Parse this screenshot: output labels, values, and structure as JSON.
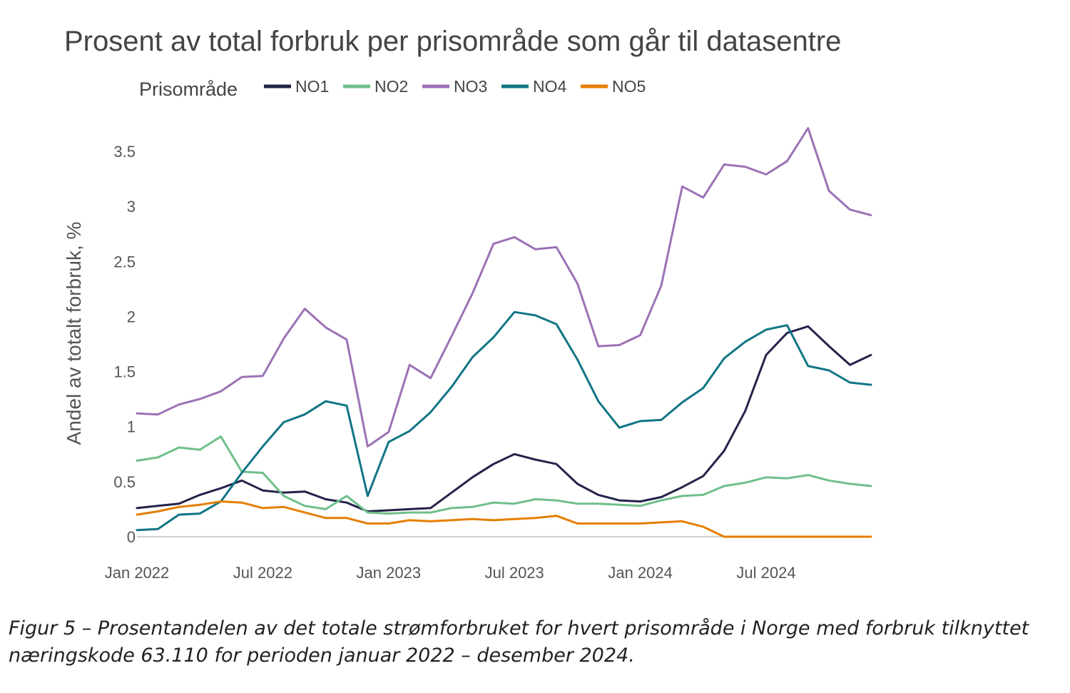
{
  "chart_data": {
    "type": "line",
    "title": "Prosent av total forbruk per prisområde som går til datasentre",
    "legend_title": "Prisområde",
    "legend_position": "top",
    "xlabel": "",
    "ylabel": "Andel av totalt forbruk, %",
    "x_ticks": [
      "Jan 2022",
      "Jul 2022",
      "Jan 2023",
      "Jul 2023",
      "Jan 2024",
      "Jul 2024"
    ],
    "y_ticks": [
      "0",
      "0.5",
      "1",
      "1.5",
      "2",
      "2.5",
      "3",
      "3.5"
    ],
    "ylim": [
      0,
      3.75
    ],
    "grid": false,
    "x": [
      "2022-01",
      "2022-02",
      "2022-03",
      "2022-04",
      "2022-05",
      "2022-06",
      "2022-07",
      "2022-08",
      "2022-09",
      "2022-10",
      "2022-11",
      "2022-12",
      "2023-01",
      "2023-02",
      "2023-03",
      "2023-04",
      "2023-05",
      "2023-06",
      "2023-07",
      "2023-08",
      "2023-09",
      "2023-10",
      "2023-11",
      "2023-12",
      "2024-01",
      "2024-02",
      "2024-03",
      "2024-04",
      "2024-05",
      "2024-06",
      "2024-07",
      "2024-08",
      "2024-09",
      "2024-10",
      "2024-11",
      "2024-12"
    ],
    "series": [
      {
        "name": "NO1",
        "color": "#23234a",
        "values": [
          0.26,
          0.28,
          0.3,
          0.38,
          0.44,
          0.51,
          0.42,
          0.4,
          0.41,
          0.34,
          0.31,
          0.23,
          0.24,
          0.25,
          0.26,
          0.4,
          0.54,
          0.66,
          0.75,
          0.7,
          0.66,
          0.48,
          0.38,
          0.33,
          0.32,
          0.36,
          0.45,
          0.55,
          0.78,
          1.14,
          1.65,
          1.85,
          1.91,
          1.73,
          1.56,
          1.65
        ]
      },
      {
        "name": "NO2",
        "color": "#6fbf8a",
        "values": [
          0.69,
          0.72,
          0.81,
          0.79,
          0.91,
          0.59,
          0.58,
          0.37,
          0.28,
          0.25,
          0.37,
          0.22,
          0.21,
          0.22,
          0.22,
          0.26,
          0.27,
          0.31,
          0.3,
          0.34,
          0.33,
          0.3,
          0.3,
          0.29,
          0.28,
          0.33,
          0.37,
          0.38,
          0.46,
          0.49,
          0.54,
          0.53,
          0.56,
          0.51,
          0.48,
          0.46
        ]
      },
      {
        "name": "NO3",
        "color": "#9b72b6",
        "values": [
          1.12,
          1.11,
          1.2,
          1.25,
          1.32,
          1.45,
          1.46,
          1.8,
          2.07,
          1.9,
          1.79,
          0.82,
          0.95,
          1.56,
          1.44,
          1.82,
          2.21,
          2.66,
          2.72,
          2.61,
          2.63,
          2.3,
          1.73,
          1.74,
          1.83,
          2.28,
          3.18,
          3.08,
          3.38,
          3.36,
          3.29,
          3.41,
          3.71,
          3.14,
          2.97,
          2.92
        ]
      },
      {
        "name": "NO4",
        "color": "#127586",
        "values": [
          0.06,
          0.07,
          0.2,
          0.21,
          0.32,
          0.58,
          0.82,
          1.04,
          1.11,
          1.23,
          1.19,
          0.37,
          0.86,
          0.96,
          1.13,
          1.36,
          1.63,
          1.81,
          2.04,
          2.01,
          1.93,
          1.61,
          1.23,
          0.99,
          1.05,
          1.06,
          1.22,
          1.35,
          1.62,
          1.77,
          1.88,
          1.92,
          1.55,
          1.51,
          1.4,
          1.38
        ]
      },
      {
        "name": "NO5",
        "color": "#e67e00",
        "values": [
          0.2,
          0.23,
          0.27,
          0.29,
          0.32,
          0.31,
          0.26,
          0.27,
          0.22,
          0.17,
          0.17,
          0.12,
          0.12,
          0.15,
          0.14,
          0.15,
          0.16,
          0.15,
          0.16,
          0.17,
          0.19,
          0.12,
          0.12,
          0.12,
          0.12,
          0.13,
          0.14,
          0.09,
          0.0,
          0.0,
          0.0,
          0.0,
          0.0,
          0.0,
          0.0,
          0.0
        ]
      }
    ]
  },
  "caption": "Figur 5  –  Prosentandelen av det totale strømforbruket for hvert prisområde i Norge med forbruk tilknyttet næringskode 63.110 for perioden januar 2022 – desember 2024."
}
